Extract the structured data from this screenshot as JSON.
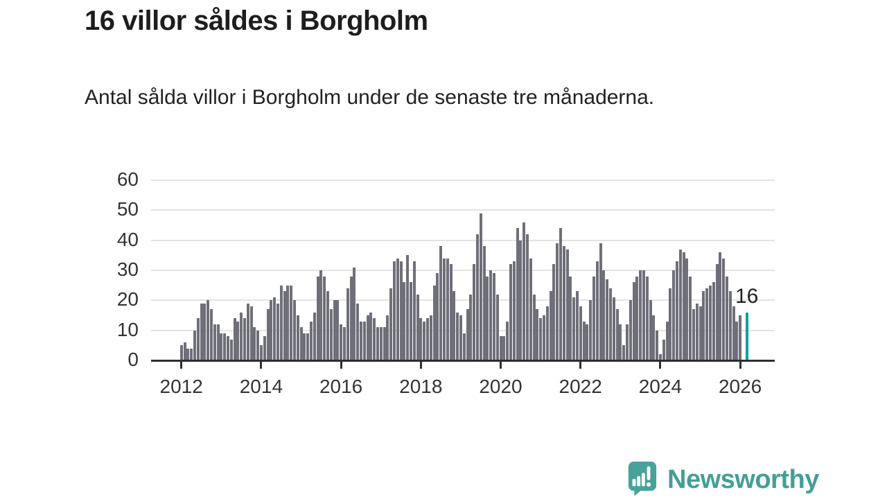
{
  "title": "16 villor såldes i Borgholm",
  "subtitle": "Antal sålda villor i Borgholm under de senaste tre månaderna.",
  "chart_data": {
    "type": "bar",
    "description": "Monthly count of sold houses (rolling three months), Borgholm",
    "frequency": "monthly",
    "start": "2012-01",
    "x": "time",
    "ylim": [
      0,
      60
    ],
    "yticks": [
      0,
      10,
      20,
      30,
      40,
      50,
      60
    ],
    "xticks": [
      2012,
      2014,
      2016,
      2018,
      2020,
      2022,
      2024,
      2026
    ],
    "grid": true,
    "bar_color": "#6f6f79",
    "highlight_color": "#00a49e",
    "values": [
      5,
      6,
      4,
      4,
      10,
      14,
      19,
      19,
      20,
      17,
      12,
      12,
      9,
      9,
      8,
      7,
      14,
      13,
      16,
      14,
      19,
      18,
      11,
      10,
      5,
      8,
      17,
      20,
      21,
      19,
      25,
      23,
      25,
      25,
      20,
      15,
      11,
      9,
      9,
      13,
      16,
      28,
      30,
      28,
      23,
      17,
      20,
      20,
      12,
      11,
      24,
      28,
      31,
      19,
      13,
      13,
      15,
      16,
      14,
      11,
      11,
      11,
      15,
      24,
      33,
      34,
      33,
      26,
      35,
      26,
      33,
      22,
      14,
      13,
      14,
      15,
      25,
      29,
      38,
      34,
      34,
      32,
      23,
      16,
      15,
      9,
      17,
      22,
      32,
      42,
      49,
      38,
      28,
      30,
      29,
      22,
      8,
      8,
      13,
      32,
      33,
      44,
      40,
      46,
      42,
      34,
      22,
      17,
      14,
      15,
      18,
      23,
      32,
      39,
      44,
      38,
      37,
      28,
      21,
      23,
      18,
      13,
      12,
      20,
      28,
      33,
      39,
      30,
      27,
      24,
      21,
      17,
      12,
      5,
      12,
      20,
      26,
      28,
      30,
      30,
      28,
      20,
      15,
      10,
      2,
      7,
      13,
      24,
      30,
      33,
      37,
      36,
      34,
      28,
      17,
      19,
      18,
      23,
      24,
      25,
      26,
      32,
      36,
      34,
      28,
      23,
      18,
      13,
      15
    ],
    "highlight": {
      "label": "16",
      "value": 16,
      "offset_slots": 2
    }
  },
  "footer": {
    "brand": "Newsworthy",
    "brand_color": "#459e96",
    "logo_icon": "bar-chart-speech-bubble-icon"
  }
}
